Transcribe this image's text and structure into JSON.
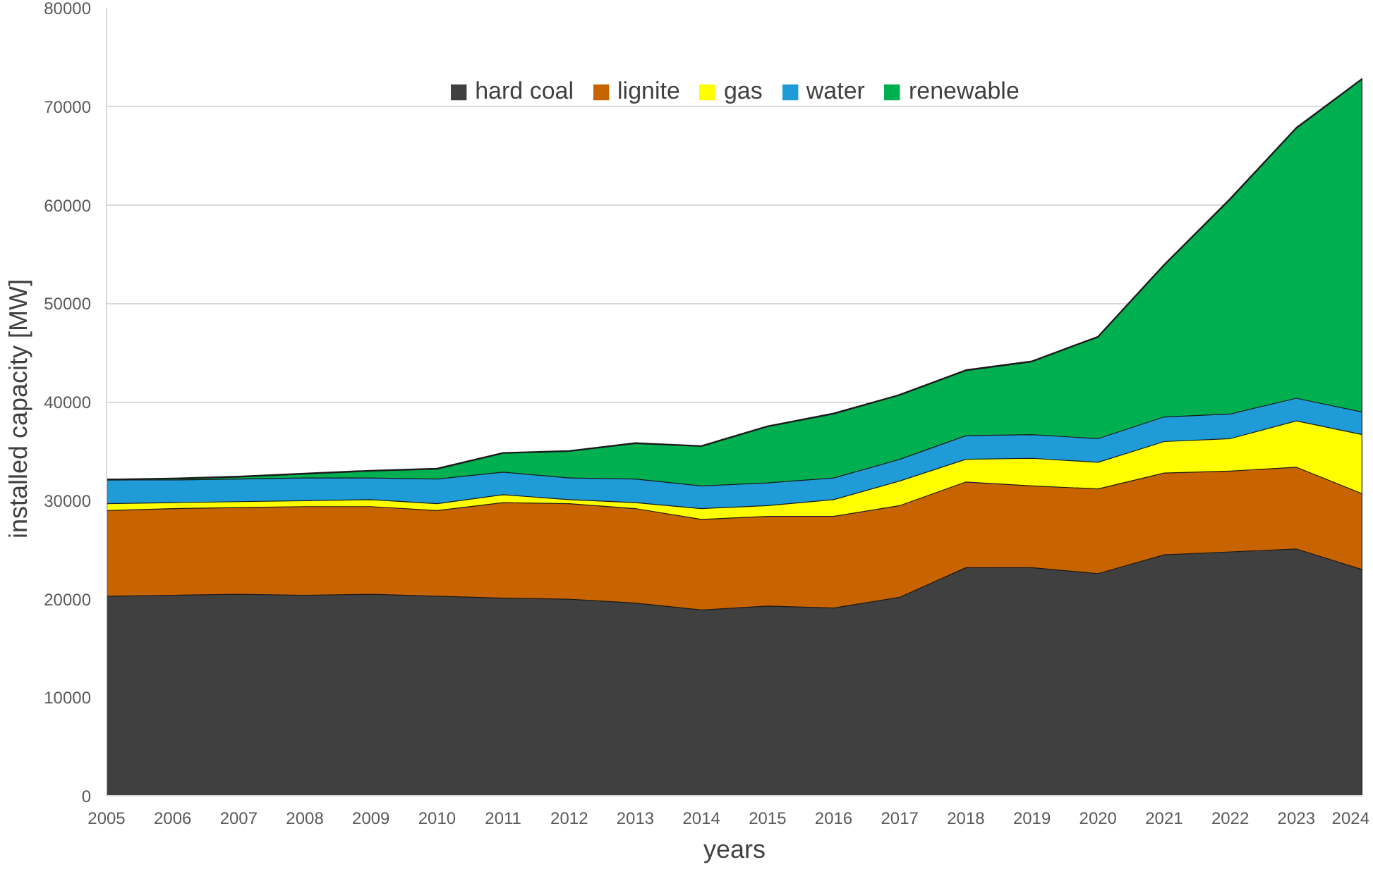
{
  "chart_data": {
    "type": "area",
    "stacked": true,
    "xlabel": "years",
    "ylabel": "installed capacity   [MW]",
    "categories": [
      "2005",
      "2006",
      "2007",
      "2008",
      "2009",
      "2010",
      "2011",
      "2012",
      "2013",
      "2014",
      "2015",
      "2016",
      "2017",
      "2018",
      "2019",
      "2020",
      "2021",
      "2022",
      "2023",
      "2024"
    ],
    "ylim": [
      0,
      80000
    ],
    "yticks": [
      0,
      10000,
      20000,
      30000,
      40000,
      50000,
      60000,
      70000,
      80000
    ],
    "grid": "y",
    "legend": "top",
    "series": [
      {
        "name": "hard coal",
        "color": "#404040",
        "values": [
          20300,
          20400,
          20500,
          20400,
          20500,
          20300,
          20100,
          20000,
          19600,
          18900,
          19300,
          19100,
          20200,
          23200,
          23200,
          22600,
          24500,
          24800,
          25100,
          23000
        ]
      },
      {
        "name": "lignite",
        "color": "#c86400",
        "values": [
          8700,
          8800,
          8800,
          9000,
          8900,
          8700,
          9700,
          9700,
          9600,
          9200,
          9100,
          9300,
          9300,
          8700,
          8300,
          8600,
          8300,
          8200,
          8300,
          7700
        ]
      },
      {
        "name": "gas",
        "color": "#ffff00",
        "values": [
          700,
          600,
          600,
          600,
          700,
          700,
          800,
          400,
          600,
          1100,
          1100,
          1700,
          2500,
          2300,
          2800,
          2700,
          3200,
          3300,
          4700,
          6000
        ]
      },
      {
        "name": "water",
        "color": "#1f9bd7",
        "values": [
          2400,
          2300,
          2300,
          2300,
          2200,
          2500,
          2300,
          2200,
          2400,
          2300,
          2300,
          2200,
          2200,
          2400,
          2400,
          2400,
          2500,
          2500,
          2300,
          2300
        ]
      },
      {
        "name": "renewable",
        "color": "#00b050",
        "values": [
          0,
          100,
          200,
          400,
          700,
          1000,
          1900,
          2700,
          3600,
          4000,
          5700,
          6500,
          6500,
          6600,
          7400,
          10300,
          15400,
          21800,
          27400,
          33800
        ]
      }
    ]
  }
}
